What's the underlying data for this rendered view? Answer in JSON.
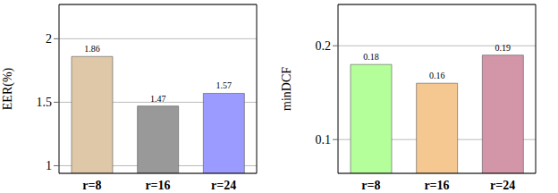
{
  "chart_data": [
    {
      "type": "bar",
      "y_label": "EER(%)",
      "categories": [
        "r=8",
        "r=16",
        "r=24"
      ],
      "values": [
        1.86,
        1.47,
        1.57
      ],
      "colors": [
        "#dfc8a8",
        "#999999",
        "#9b9bff"
      ],
      "ylim": [
        0.94,
        2.27
      ],
      "yticks": [
        1,
        1.5,
        2
      ],
      "grid": true,
      "data_labels": true
    },
    {
      "type": "bar",
      "y_label": "minDCF",
      "categories": [
        "r=8",
        "r=16",
        "r=24"
      ],
      "values": [
        0.18,
        0.16,
        0.19
      ],
      "colors": [
        "#b4ff9a",
        "#f5c891",
        "#d396a9"
      ],
      "ylim": [
        0.064,
        0.244
      ],
      "yticks": [
        0.1,
        0.2
      ],
      "grid": true,
      "data_labels": true
    }
  ]
}
